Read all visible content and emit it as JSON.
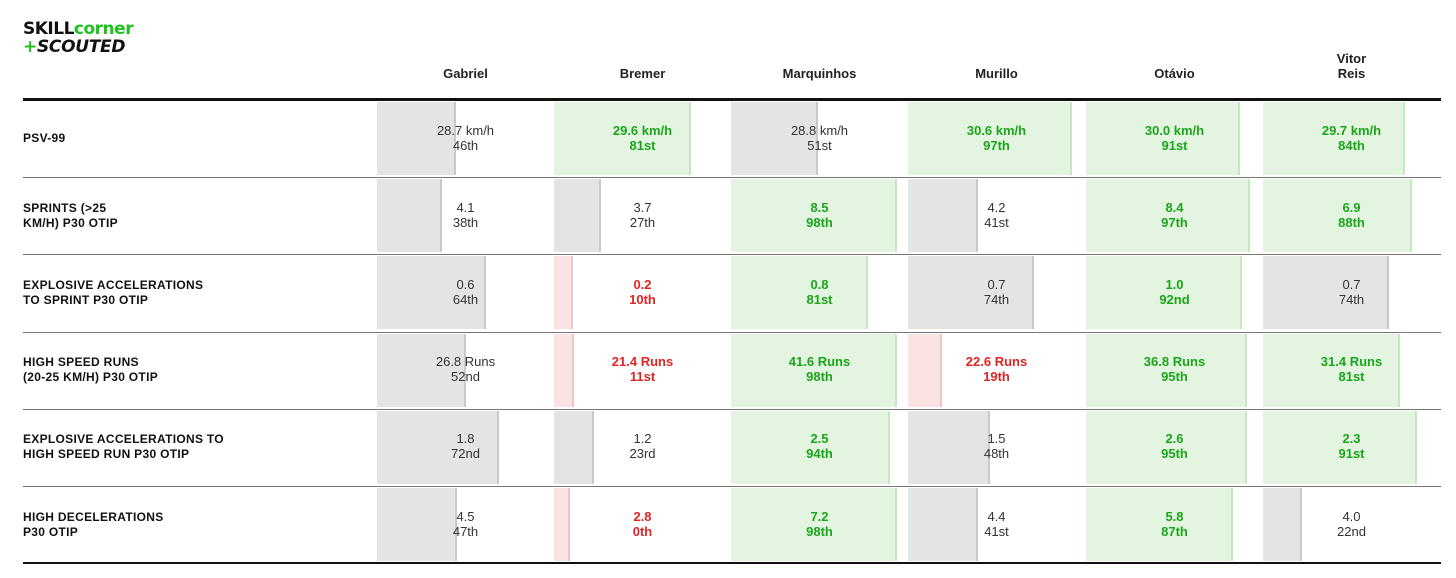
{
  "logo": {
    "line1a": "SKILL",
    "line1b": "corner",
    "line2_plus": "+",
    "line2": "SCOUTED"
  },
  "colors": {
    "green_text": "#1aa51a",
    "red_text": "#e02424",
    "brand_green": "#1ec21e"
  },
  "chart_data": {
    "type": "table",
    "title": "",
    "players": [
      "Gabriel",
      "Bremer",
      "Marquinhos",
      "Murillo",
      "Otávio",
      "Vitor Reis"
    ],
    "player_headers": [
      [
        "Gabriel"
      ],
      [
        "Bremer"
      ],
      [
        "Marquinhos"
      ],
      [
        "Murillo"
      ],
      [
        "Otávio"
      ],
      [
        "Vitor",
        "Reis"
      ]
    ],
    "metrics": [
      {
        "label_lines": [
          "PSV-99"
        ],
        "cells": [
          {
            "value": "28.7 km/h",
            "rank": "46th",
            "percentile": 46,
            "status": "grey"
          },
          {
            "value": "29.6 km/h",
            "rank": "81st",
            "percentile": 81,
            "status": "green"
          },
          {
            "value": "28.8 km/h",
            "rank": "51st",
            "percentile": 51,
            "status": "grey"
          },
          {
            "value": "30.6 km/h",
            "rank": "97th",
            "percentile": 97,
            "status": "green"
          },
          {
            "value": "30.0 km/h",
            "rank": "91st",
            "percentile": 91,
            "status": "green"
          },
          {
            "value": "29.7 km/h",
            "rank": "84th",
            "percentile": 84,
            "status": "green"
          }
        ]
      },
      {
        "label_lines": [
          "SPRINTS (>25",
          "KM/H) P30 OTIP"
        ],
        "cells": [
          {
            "value": "4.1",
            "rank": "38th",
            "percentile": 38,
            "status": "grey"
          },
          {
            "value": "3.7",
            "rank": "27th",
            "percentile": 27,
            "status": "grey"
          },
          {
            "value": "8.5",
            "rank": "98th",
            "percentile": 98,
            "status": "green"
          },
          {
            "value": "4.2",
            "rank": "41st",
            "percentile": 41,
            "status": "grey"
          },
          {
            "value": "8.4",
            "rank": "97th",
            "percentile": 97,
            "status": "green"
          },
          {
            "value": "6.9",
            "rank": "88th",
            "percentile": 88,
            "status": "green"
          }
        ]
      },
      {
        "label_lines": [
          "EXPLOSIVE ACCELERATIONS",
          "TO SPRINT P30 OTIP"
        ],
        "cells": [
          {
            "value": "0.6",
            "rank": "64th",
            "percentile": 64,
            "status": "grey"
          },
          {
            "value": "0.2",
            "rank": "10th",
            "percentile": 10,
            "status": "red"
          },
          {
            "value": "0.8",
            "rank": "81st",
            "percentile": 81,
            "status": "green"
          },
          {
            "value": "0.7",
            "rank": "74th",
            "percentile": 74,
            "status": "grey"
          },
          {
            "value": "1.0",
            "rank": "92nd",
            "percentile": 92,
            "status": "green"
          },
          {
            "value": "0.7",
            "rank": "74th",
            "percentile": 74,
            "status": "grey"
          }
        ]
      },
      {
        "label_lines": [
          "HIGH SPEED RUNS",
          "(20-25 KM/H) P30 OTIP"
        ],
        "cells": [
          {
            "value": "26.8 Runs",
            "rank": "52nd",
            "percentile": 52,
            "status": "grey"
          },
          {
            "value": "21.4 Runs",
            "rank": "11st",
            "percentile": 11,
            "status": "red"
          },
          {
            "value": "41.6 Runs",
            "rank": "98th",
            "percentile": 98,
            "status": "green"
          },
          {
            "value": "22.6 Runs",
            "rank": "19th",
            "percentile": 19,
            "status": "red"
          },
          {
            "value": "36.8 Runs",
            "rank": "95th",
            "percentile": 95,
            "status": "green"
          },
          {
            "value": "31.4 Runs",
            "rank": "81st",
            "percentile": 81,
            "status": "green"
          }
        ]
      },
      {
        "label_lines": [
          "EXPLOSIVE ACCELERATIONS TO",
          "HIGH SPEED RUN P30 OTIP"
        ],
        "cells": [
          {
            "value": "1.8",
            "rank": "72nd",
            "percentile": 72,
            "status": "grey"
          },
          {
            "value": "1.2",
            "rank": "23rd",
            "percentile": 23,
            "status": "grey"
          },
          {
            "value": "2.5",
            "rank": "94th",
            "percentile": 94,
            "status": "green"
          },
          {
            "value": "1.5",
            "rank": "48th",
            "percentile": 48,
            "status": "grey"
          },
          {
            "value": "2.6",
            "rank": "95th",
            "percentile": 95,
            "status": "green"
          },
          {
            "value": "2.3",
            "rank": "91st",
            "percentile": 91,
            "status": "green"
          }
        ]
      },
      {
        "label_lines": [
          "HIGH DECELERATIONS",
          "P30 OTIP"
        ],
        "cells": [
          {
            "value": "4.5",
            "rank": "47th",
            "percentile": 47,
            "status": "grey"
          },
          {
            "value": "2.8",
            "rank": "0th",
            "percentile": 0,
            "status": "red"
          },
          {
            "value": "7.2",
            "rank": "98th",
            "percentile": 98,
            "status": "green"
          },
          {
            "value": "4.4",
            "rank": "41st",
            "percentile": 41,
            "status": "grey"
          },
          {
            "value": "5.8",
            "rank": "87th",
            "percentile": 87,
            "status": "green"
          },
          {
            "value": "4.0",
            "rank": "22nd",
            "percentile": 22,
            "status": "grey"
          }
        ]
      }
    ]
  }
}
